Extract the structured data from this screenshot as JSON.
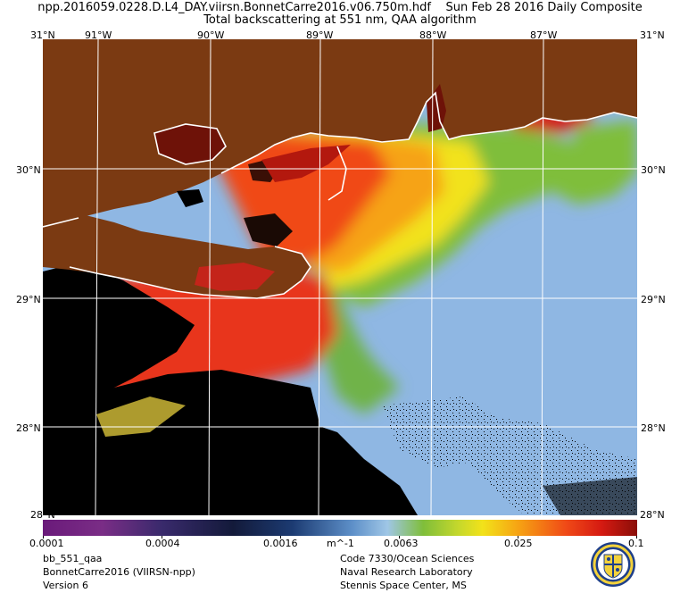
{
  "title_line1": "npp.2016059.0228.D.L4_DAY.viirsn.BonnetCarre2016.v06.750m.hdf    Sun Feb 28 2016 Daily Composite",
  "title_line2": "Total backscattering at 551 nm, QAA algorithm",
  "lon_labels_top": [
    "91°W",
    "90°W",
    "89°W",
    "88°W",
    "87°W"
  ],
  "lat_labels": [
    "30°N",
    "29°N",
    "28°N"
  ],
  "corner_labels": {
    "tl": "31°N",
    "tr": "31°N",
    "bl": "28°N",
    "br": "28°N"
  },
  "colorbar": {
    "tick_labels": [
      "0.0001",
      "0.0004",
      "0.0016",
      "0.0063",
      "0.025",
      "0.1"
    ],
    "units": "m^-1"
  },
  "footer": {
    "left": [
      "bb_551_qaa",
      "BonnetCarre2016 (VIIRSN-npp)",
      "Version 6"
    ],
    "right": [
      "Code 7330/Ocean Sciences",
      "Naval Research Laboratory",
      "Stennis Space Center, MS"
    ]
  },
  "colors": {
    "land": "#7b3a12",
    "coast": "#ffffff",
    "nodata": "#000000",
    "clear_water": "#8fb7e3"
  }
}
